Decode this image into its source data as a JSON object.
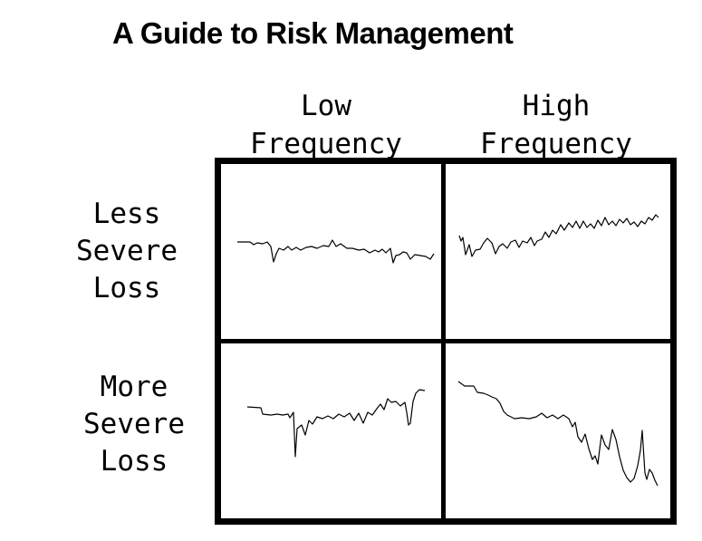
{
  "title": "A Guide to Risk Management",
  "columns": [
    "Low\nFrequency",
    "High\nFrequency"
  ],
  "rows": [
    "Less\nSevere\nLoss",
    "More\nSevere\nLoss"
  ],
  "colors": {
    "ink": "#000000",
    "background": "#ffffff"
  }
}
